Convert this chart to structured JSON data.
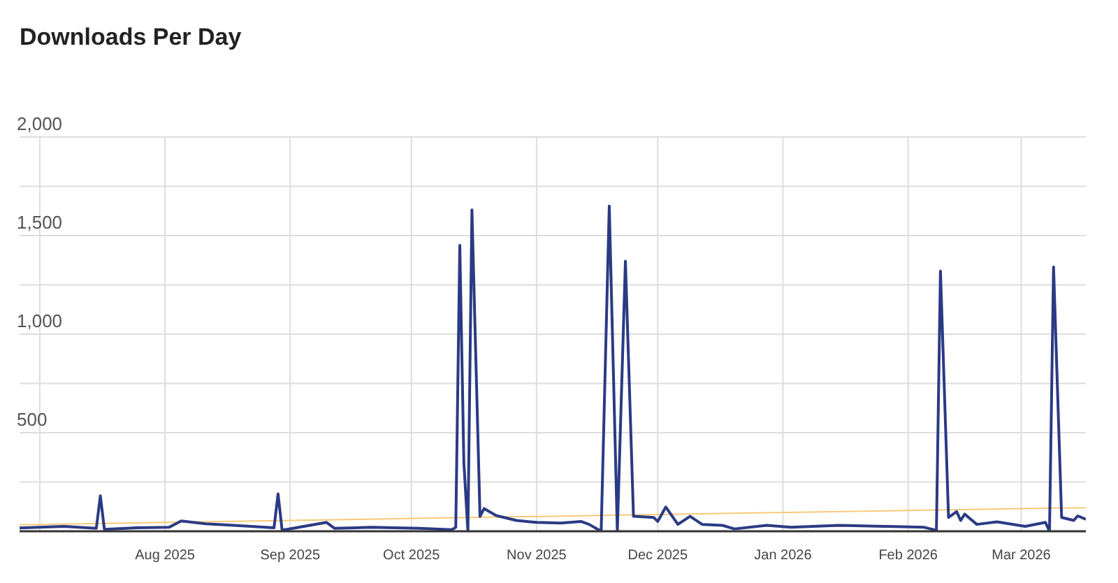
{
  "chart_data": {
    "type": "line",
    "title": "Downloads Per Day",
    "xlim": [
      "2025-06-26",
      "2026-03-17"
    ],
    "xticks": [
      {
        "value": "2025-07-01",
        "label": null
      },
      {
        "value": "2025-08-01",
        "label": "Aug 2025"
      },
      {
        "value": "2025-09-01",
        "label": "Sep 2025"
      },
      {
        "value": "2025-10-01",
        "label": "Oct 2025"
      },
      {
        "value": "2025-11-01",
        "label": "Nov 2025"
      },
      {
        "value": "2025-12-01",
        "label": "Dec 2025"
      },
      {
        "value": "2026-01-01",
        "label": "Jan 2026"
      },
      {
        "value": "2026-02-01",
        "label": "Feb 2026"
      },
      {
        "value": "2026-03-01",
        "label": "Mar 2026"
      }
    ],
    "ylim": [
      0,
      2000
    ],
    "yticks": [
      {
        "value": 0,
        "label": null
      },
      {
        "value": 250,
        "label": null
      },
      500,
      {
        "value": 750,
        "label": null
      },
      {
        "value": 1000,
        "label": "1,000"
      },
      {
        "value": 1250,
        "label": null
      },
      {
        "value": 1500,
        "label": "1,500"
      },
      {
        "value": 1750,
        "label": null
      },
      {
        "value": 2000,
        "label": "2,000"
      }
    ],
    "grid": true,
    "marker": "none",
    "series": [
      {
        "color": "#2b3a84",
        "x": [
          "2025-06-26",
          "2025-07-07",
          "2025-07-15",
          "2025-07-16",
          "2025-07-17",
          "2025-07-25",
          "2025-08-02",
          "2025-08-05",
          "2025-08-11",
          "2025-08-18",
          "2025-08-28",
          "2025-08-29",
          "2025-08-30",
          "2025-09-10",
          "2025-09-12",
          "2025-09-21",
          "2025-10-03",
          "2025-10-11",
          "2025-10-12",
          "2025-10-13",
          "2025-10-14",
          "2025-10-15",
          "2025-10-16",
          "2025-10-18",
          "2025-10-19",
          "2025-10-22",
          "2025-10-27",
          "2025-11-01",
          "2025-11-07",
          "2025-11-12",
          "2025-11-14",
          "2025-11-17",
          "2025-11-19",
          "2025-11-21",
          "2025-11-23",
          "2025-11-25",
          "2025-11-30",
          "2025-12-01",
          "2025-12-03",
          "2025-12-06",
          "2025-12-09",
          "2025-12-12",
          "2025-12-17",
          "2025-12-20",
          "2025-12-28",
          "2026-01-03",
          "2026-01-15",
          "2026-01-26",
          "2026-02-05",
          "2026-02-08",
          "2026-02-09",
          "2026-02-11",
          "2026-02-13",
          "2026-02-14",
          "2026-02-15",
          "2026-02-18",
          "2026-02-23",
          "2026-03-02",
          "2026-03-07",
          "2026-03-08",
          "2026-03-09",
          "2026-03-11",
          "2026-03-14",
          "2026-03-15",
          "2026-03-17"
        ],
        "values": [
          17,
          25,
          15,
          180,
          10,
          18,
          20,
          52,
          38,
          30,
          18,
          190,
          5,
          45,
          15,
          20,
          15,
          8,
          20,
          1450,
          350,
          0,
          1630,
          75,
          115,
          80,
          55,
          45,
          42,
          50,
          35,
          0,
          1650,
          0,
          1370,
          76,
          70,
          50,
          123,
          35,
          76,
          35,
          30,
          12,
          30,
          20,
          30,
          25,
          20,
          5,
          1320,
          70,
          100,
          55,
          87,
          35,
          48,
          25,
          45,
          0,
          1340,
          70,
          55,
          78,
          61
        ]
      },
      {
        "color": "#f7c97a",
        "x": [
          "2025-06-26",
          "2026-03-17"
        ],
        "values": [
          33,
          120
        ]
      }
    ]
  }
}
